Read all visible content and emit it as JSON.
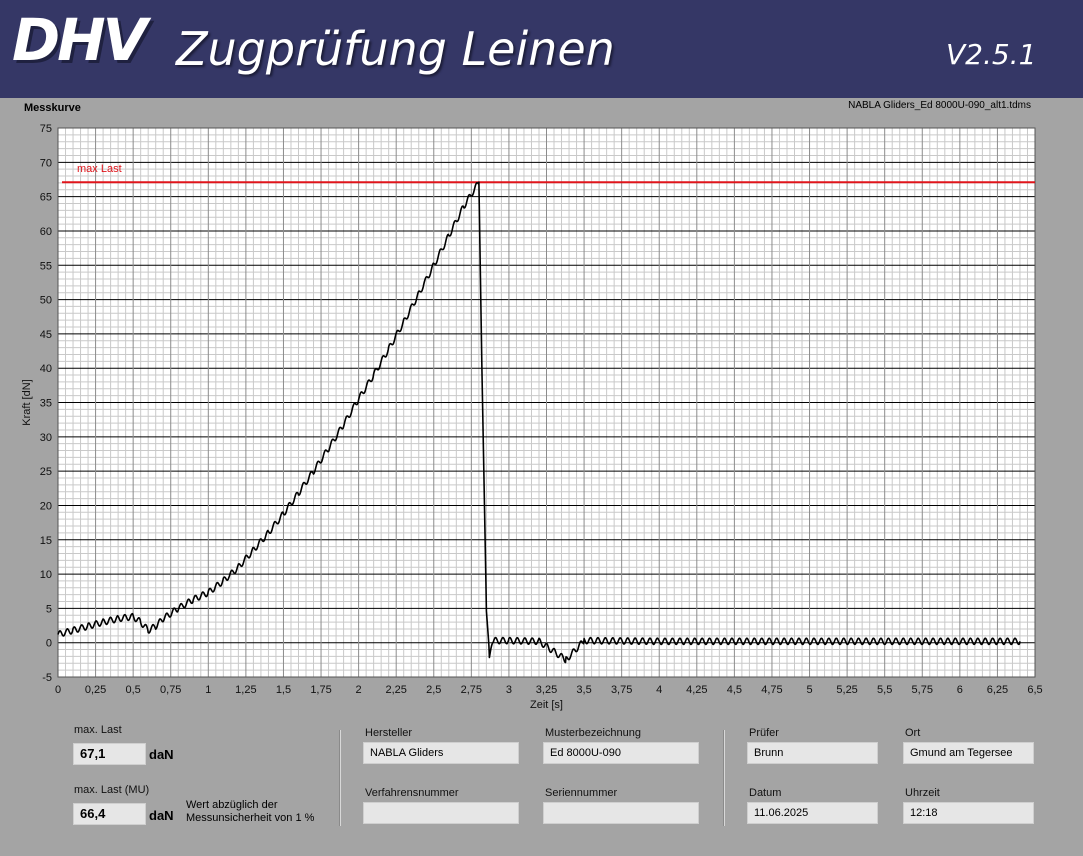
{
  "header": {
    "logo_text": "DHV",
    "title": "Zugprüfung Leinen",
    "version": "V2.5.1"
  },
  "chart_panel": {
    "name": "Messkurve",
    "file": "NABLA Gliders_Ed 8000U-090_alt1.tdms"
  },
  "chart_data": {
    "type": "line",
    "xlabel": "Zeit [s]",
    "ylabel": "Kraft [dN]",
    "xlim": [
      0,
      6.5
    ],
    "ylim": [
      -5,
      75
    ],
    "x_ticks": [
      "0",
      "0,25",
      "0,5",
      "0,75",
      "1",
      "1,25",
      "1,5",
      "1,75",
      "2",
      "2,25",
      "2,5",
      "2,75",
      "3",
      "3,25",
      "3,5",
      "3,75",
      "4",
      "4,25",
      "4,5",
      "4,75",
      "5",
      "5,25",
      "5,5",
      "5,75",
      "6",
      "6,25",
      "6,5"
    ],
    "y_ticks": [
      "-5",
      "0",
      "5",
      "10",
      "15",
      "20",
      "25",
      "30",
      "35",
      "40",
      "45",
      "50",
      "55",
      "60",
      "65",
      "70",
      "75"
    ],
    "grid": true,
    "max_line": {
      "label": "max Last",
      "value": 67.1,
      "color": "#e0151b"
    },
    "series_color": "#000000",
    "series": [
      {
        "x": [
          0,
          0.1,
          0.2,
          0.3,
          0.4,
          0.5,
          0.55,
          0.6,
          0.65,
          0.7,
          0.8,
          0.9,
          1.0,
          1.1,
          1.2,
          1.3,
          1.4,
          1.5,
          1.6,
          1.7,
          1.8,
          1.9,
          2.0,
          2.1,
          2.2,
          2.3,
          2.4,
          2.5,
          2.6,
          2.7,
          2.8,
          2.82,
          2.85,
          2.87,
          2.9,
          3.0,
          3.2,
          3.38,
          3.5,
          4.0,
          4.5,
          5.0,
          5.5,
          6.0,
          6.4
        ],
        "y": [
          1.2,
          1.8,
          2.4,
          3.0,
          3.5,
          3.8,
          3.0,
          1.8,
          2.4,
          3.5,
          5.0,
          6.3,
          7.3,
          9.0,
          11.0,
          13.5,
          16.0,
          18.8,
          21.8,
          25.0,
          28.3,
          31.8,
          35.5,
          39.0,
          42.8,
          46.7,
          50.8,
          55.0,
          59.3,
          63.6,
          67.1,
          40.0,
          5.0,
          -2.0,
          0.3,
          0.3,
          0.2,
          -2.5,
          0.3,
          0.2,
          0.2,
          0.2,
          0.2,
          0.2,
          0.2
        ]
      }
    ]
  },
  "results": {
    "max_last_label": "max. Last",
    "max_last_value": "67,1",
    "max_last_unit": "daN",
    "max_last_mu_label": "max. Last (MU)",
    "max_last_mu_value": "66,4",
    "max_last_mu_unit": "daN",
    "note": "Wert abzüglich der Messunsicherheit von 1 %"
  },
  "info": {
    "hersteller_label": "Hersteller",
    "hersteller_value": "NABLA Gliders",
    "muster_label": "Musterbezeichnung",
    "muster_value": "Ed 8000U-090",
    "verfahren_label": "Verfahrensnummer",
    "verfahren_value": "",
    "serien_label": "Seriennummer",
    "serien_value": "",
    "pruefer_label": "Prüfer",
    "pruefer_value": "Brunn",
    "ort_label": "Ort",
    "ort_value": "Gmund am Tegersee",
    "datum_label": "Datum",
    "datum_value": "11.06.2025",
    "uhrzeit_label": "Uhrzeit",
    "uhrzeit_value": "12:18"
  }
}
